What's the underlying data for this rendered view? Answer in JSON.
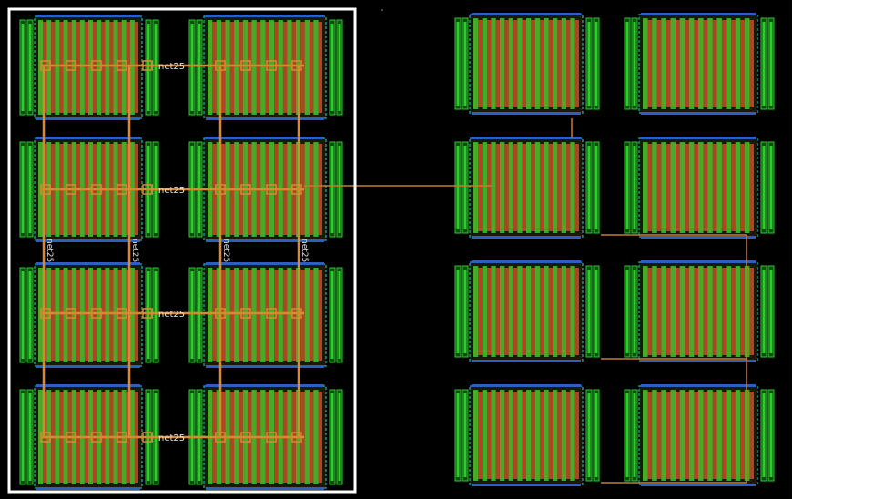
{
  "canvas": {
    "background": "#000000"
  },
  "colors": {
    "diffusion_green": "#2ecc2e",
    "diffusion_dark": "#0b4d0b",
    "poly_red": "#b83a24",
    "metal_orange": "#d98a2e",
    "route_orange": "#c97a2a",
    "outline_teal": "#1f8f8f",
    "outline_blue": "#2e5fbf",
    "selection_white": "#ffffff",
    "label_text": "#e0e0e0"
  },
  "left_array": {
    "net_labels_horizontal": [
      "net25",
      "net25",
      "net25",
      "net25"
    ],
    "net_labels_vertical": [
      "net25",
      "net25",
      "net25",
      "net25"
    ]
  },
  "right_array": {
    "description": ""
  }
}
